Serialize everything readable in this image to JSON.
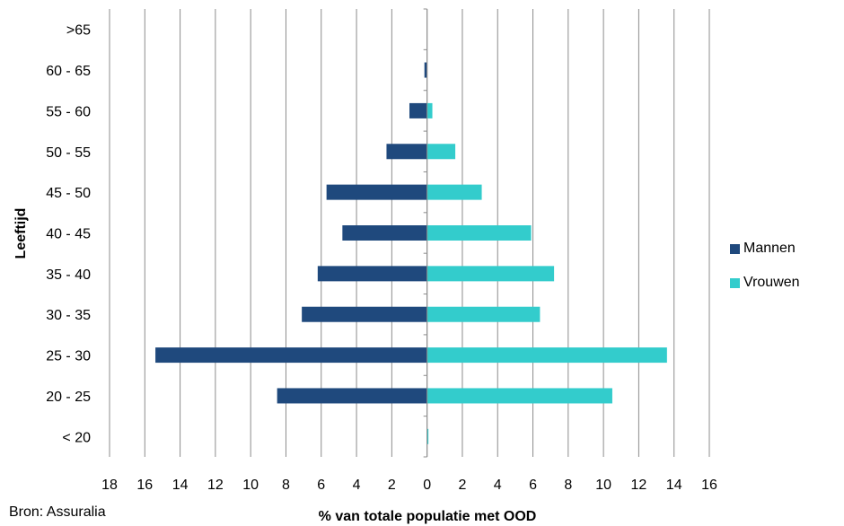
{
  "chart_data": {
    "type": "bar",
    "orientation": "horizontal",
    "subtype": "population-pyramid",
    "categories": [
      "< 20",
      "20 - 25",
      "25 - 30",
      "30 - 35",
      "35 - 40",
      "40 - 45",
      "45 - 50",
      "50 - 55",
      "55 - 60",
      "60 - 65",
      ">65"
    ],
    "series": [
      {
        "name": "Mannen",
        "color": "#1f497d",
        "side": "left",
        "values": [
          0,
          8.5,
          15.4,
          7.1,
          6.2,
          4.8,
          5.7,
          2.3,
          1.0,
          0.15,
          0
        ]
      },
      {
        "name": "Vrouwen",
        "color": "#33cccc",
        "side": "right",
        "values": [
          0.05,
          10.5,
          13.6,
          6.4,
          7.2,
          5.9,
          3.1,
          1.6,
          0.3,
          0,
          0
        ]
      }
    ],
    "xlabel": "% van totale populatie met OOD",
    "ylabel": "Leeftijd",
    "xlim": [
      -18,
      16
    ],
    "xticks": [
      "18",
      "16",
      "14",
      "12",
      "10",
      "8",
      "6",
      "4",
      "2",
      "0",
      "2",
      "4",
      "6",
      "8",
      "10",
      "12",
      "14",
      "16"
    ],
    "grid": "vertical",
    "legend_position": "right"
  },
  "source": "Bron: Assuralia"
}
